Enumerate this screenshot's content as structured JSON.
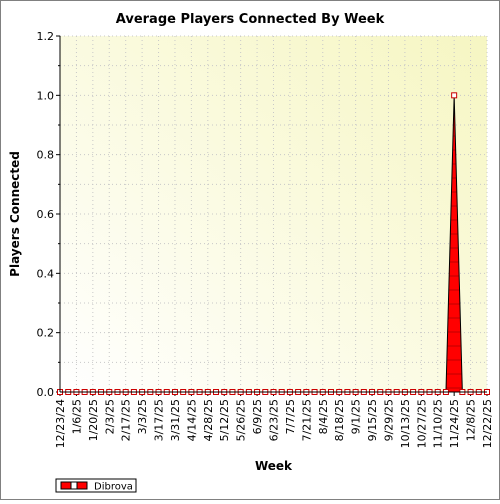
{
  "chart_data": {
    "type": "area",
    "title": "Average Players Connected By Week",
    "xlabel": "Week",
    "ylabel": "Players Connected",
    "ylim": [
      0,
      1.2
    ],
    "yticks": [
      "0.0",
      "0.2",
      "0.4",
      "0.6",
      "0.8",
      "1.0",
      "1.2"
    ],
    "xtick_labels": [
      "12/23/24",
      "1/6/25",
      "1/20/25",
      "2/3/25",
      "2/17/25",
      "3/3/25",
      "3/17/25",
      "3/31/25",
      "4/14/25",
      "4/28/25",
      "5/12/25",
      "5/26/25",
      "6/9/25",
      "6/23/25",
      "7/7/25",
      "7/21/25",
      "8/4/25",
      "8/18/25",
      "9/1/25",
      "9/15/25",
      "9/29/25",
      "10/13/25",
      "10/27/25",
      "11/10/25",
      "11/24/25",
      "12/8/25",
      "12/22/25"
    ],
    "x": [
      "12/23/24",
      "12/30/24",
      "1/6/25",
      "1/13/25",
      "1/20/25",
      "1/27/25",
      "2/3/25",
      "2/10/25",
      "2/17/25",
      "2/24/25",
      "3/3/25",
      "3/10/25",
      "3/17/25",
      "3/24/25",
      "3/31/25",
      "4/7/25",
      "4/14/25",
      "4/21/25",
      "4/28/25",
      "5/5/25",
      "5/12/25",
      "5/19/25",
      "5/26/25",
      "6/2/25",
      "6/9/25",
      "6/16/25",
      "6/23/25",
      "6/30/25",
      "7/7/25",
      "7/14/25",
      "7/21/25",
      "7/28/25",
      "8/4/25",
      "8/11/25",
      "8/18/25",
      "8/25/25",
      "9/1/25",
      "9/8/25",
      "9/15/25",
      "9/22/25",
      "9/29/25",
      "10/6/25",
      "10/13/25",
      "10/20/25",
      "10/27/25",
      "11/3/25",
      "11/10/25",
      "11/17/25",
      "11/24/25",
      "12/1/25",
      "12/8/25",
      "12/15/25",
      "12/22/25"
    ],
    "series": [
      {
        "name": "Dibrova",
        "color": "#ff0000",
        "values": [
          0,
          0,
          0,
          0,
          0,
          0,
          0,
          0,
          0,
          0,
          0,
          0,
          0,
          0,
          0,
          0,
          0,
          0,
          0,
          0,
          0,
          0,
          0,
          0,
          0,
          0,
          0,
          0,
          0,
          0,
          0,
          0,
          0,
          0,
          0,
          0,
          0,
          0,
          0,
          0,
          0,
          0,
          0,
          0,
          0,
          0,
          0,
          0,
          1,
          0,
          0,
          0,
          0
        ]
      }
    ],
    "grid": true,
    "legend_position": "bottom-left"
  }
}
